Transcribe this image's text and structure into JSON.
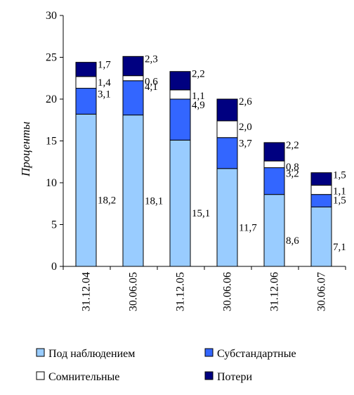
{
  "chart_data": {
    "type": "bar",
    "stacked": true,
    "ylabel": "Проценты",
    "xlabel": "",
    "title": "",
    "ylim": [
      0,
      30
    ],
    "yticks": [
      "0",
      "5",
      "10",
      "15",
      "20",
      "25",
      "30"
    ],
    "grid": false,
    "legend_position": "bottom",
    "categories": [
      "31.12.04",
      "30.06.05",
      "31.12.05",
      "30.06.06",
      "31.12.06",
      "30.06.07"
    ],
    "series": [
      {
        "name": "Под наблюдением",
        "color": "#99ccff",
        "values": [
          18.2,
          18.1,
          15.1,
          11.7,
          8.6,
          7.1
        ],
        "labels": [
          "18,2",
          "18,1",
          "15,1",
          "11,7",
          "8,6",
          "7,1"
        ]
      },
      {
        "name": "Субстандартные",
        "color": "#3366ff",
        "values": [
          3.1,
          4.1,
          4.9,
          3.7,
          3.2,
          1.5
        ],
        "labels": [
          "3,1",
          "4,1",
          "4,9",
          "3,7",
          "3,2",
          "1,5"
        ]
      },
      {
        "name": "Сомнительные",
        "color": "#ffffff",
        "values": [
          1.4,
          0.6,
          1.1,
          2.0,
          0.8,
          1.1
        ],
        "labels": [
          "1,4",
          "0,6",
          "1,1",
          "2,0",
          "0,8",
          "1,1"
        ]
      },
      {
        "name": "Потери",
        "color": "#000080",
        "values": [
          1.7,
          2.3,
          2.2,
          2.6,
          2.2,
          1.5
        ],
        "labels": [
          "1,7",
          "2,3",
          "2,2",
          "2,6",
          "2,2",
          "1,5"
        ]
      }
    ]
  }
}
